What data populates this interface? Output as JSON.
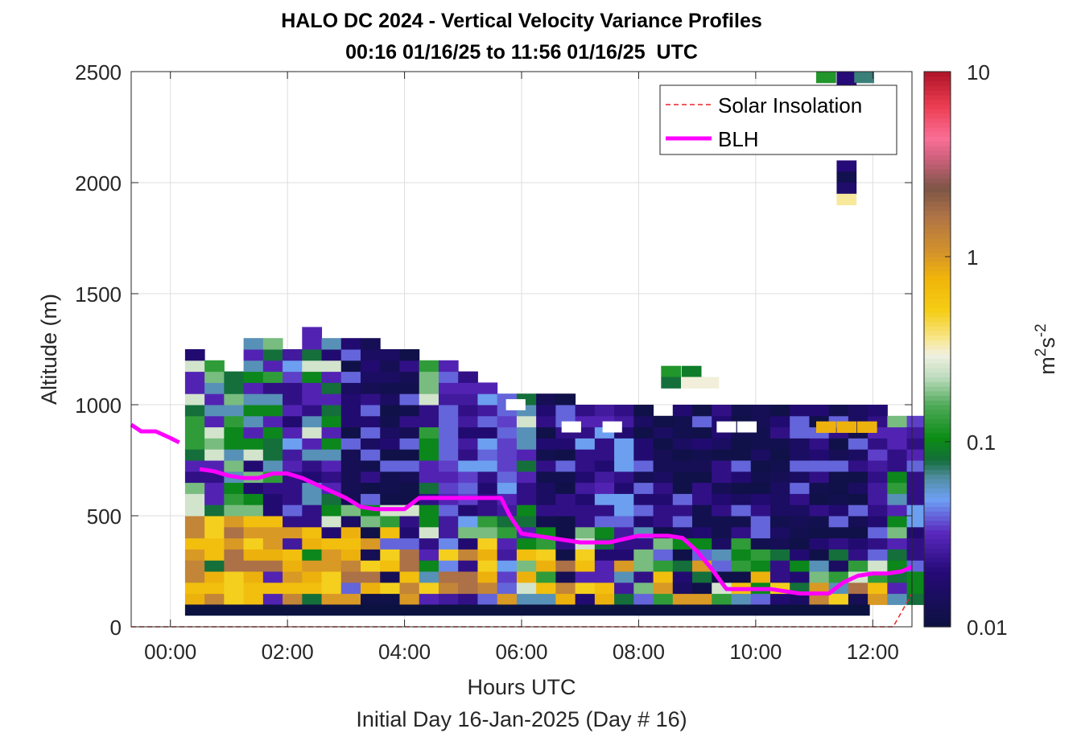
{
  "chart_data": {
    "type": "heatmap",
    "title": "HALO DC 2024 - Vertical Velocity Variance Profiles",
    "subtitle": "00:16 01/16/25 to 11:56 01/16/25  UTC",
    "xlabel": "Hours UTC",
    "xlabel_secondary": "Initial Day 16-Jan-2025 (Day # 16)",
    "ylabel": "Altitude (m)",
    "colorbar_label": "m²s⁻²",
    "colorbar_label_base": "m",
    "colorbar_label_sup1": "2",
    "colorbar_label_mid": "s",
    "colorbar_label_sup2": "-2",
    "xlim": [
      -0.67,
      12.67
    ],
    "ylim": [
      0,
      2500
    ],
    "x_ticks": [
      {
        "v": 0,
        "label": "00:00"
      },
      {
        "v": 2,
        "label": "02:00"
      },
      {
        "v": 4,
        "label": "04:00"
      },
      {
        "v": 6,
        "label": "06:00"
      },
      {
        "v": 8,
        "label": "08:00"
      },
      {
        "v": 10,
        "label": "10:00"
      },
      {
        "v": 12,
        "label": "12:00"
      }
    ],
    "y_ticks": [
      {
        "v": 0,
        "label": "0"
      },
      {
        "v": 500,
        "label": "500"
      },
      {
        "v": 1000,
        "label": "1000"
      },
      {
        "v": 1500,
        "label": "1500"
      },
      {
        "v": 2000,
        "label": "2000"
      },
      {
        "v": 2500,
        "label": "2500"
      }
    ],
    "colorbar": {
      "scale": "log",
      "min": 0.01,
      "max": 10,
      "ticks": [
        {
          "v": 0.01,
          "label": "0.01"
        },
        {
          "v": 0.1,
          "label": "0.1"
        },
        {
          "v": 1,
          "label": "1"
        },
        {
          "v": 10,
          "label": "10"
        }
      ]
    },
    "grid": true,
    "legend": {
      "placement": "top-right",
      "entries": [
        {
          "label": "Solar Insolation",
          "color": "#e8252a",
          "style": "dashed"
        },
        {
          "label": "BLH",
          "color": "#ff00ff",
          "style": "solid"
        }
      ]
    },
    "heatmap": {
      "x_start_hours": 0.25,
      "x_step_hours": 0.3333,
      "y_start_m": 100,
      "y_step_m": 50,
      "bottom_row_value": 0.01,
      "bottom_row_range_hours": [
        0.25,
        11.95
      ],
      "columns": [
        {
          "top": 1200,
          "mode": "w"
        },
        {
          "top": 1150,
          "mode": "w"
        },
        {
          "top": 1100,
          "mode": "w"
        },
        {
          "top": 1250,
          "mode": "w"
        },
        {
          "top": 1250,
          "mode": "g"
        },
        {
          "top": 1200,
          "mode": "v"
        },
        {
          "top": 1300,
          "mode": "g"
        },
        {
          "top": 1250,
          "mode": "g"
        },
        {
          "top": 1250,
          "mode": "n"
        },
        {
          "top": 1250,
          "mode": "n"
        },
        {
          "top": 1200,
          "mode": "n"
        },
        {
          "top": 1200,
          "mode": "n"
        },
        {
          "top": 1150,
          "mode": "g"
        },
        {
          "top": 1150,
          "mode": "b"
        },
        {
          "top": 1100,
          "mode": "v"
        },
        {
          "top": 1050,
          "mode": "v"
        },
        {
          "top": 1000,
          "mode": "b"
        },
        {
          "top": 1000,
          "mode": "g"
        },
        {
          "top": 1000,
          "mode": "n"
        },
        {
          "top": 1000,
          "mode": "n"
        },
        {
          "top": 950,
          "mode": "v"
        },
        {
          "top": 950,
          "mode": "v"
        },
        {
          "top": 950,
          "mode": "v"
        },
        {
          "top": 950,
          "mode": "n"
        },
        {
          "top": 900,
          "mode": "n"
        },
        {
          "top": 950,
          "mode": "n"
        },
        {
          "top": 950,
          "mode": "n"
        },
        {
          "top": 950,
          "mode": "n"
        },
        {
          "top": 950,
          "mode": "n"
        },
        {
          "top": 950,
          "mode": "n"
        },
        {
          "top": 950,
          "mode": "n"
        },
        {
          "top": 950,
          "mode": "n"
        },
        {
          "top": 950,
          "mode": "n"
        },
        {
          "top": 950,
          "mode": "n"
        },
        {
          "top": 950,
          "mode": "n"
        },
        {
          "top": 950,
          "mode": "v"
        },
        {
          "top": 900,
          "mode": "g"
        },
        {
          "top": 900,
          "mode": "v"
        }
      ],
      "extra_cells": [
        {
          "x": 8.55,
          "y": 1150,
          "v": 0.12
        },
        {
          "x": 8.55,
          "y": 1100,
          "v": 0.08
        },
        {
          "x": 8.9,
          "y": 1150,
          "v": 0.09
        },
        {
          "x": 8.9,
          "y": 1100,
          "v": 0.3
        },
        {
          "x": 9.2,
          "y": 1100,
          "v": 0.3
        },
        {
          "x": 11.2,
          "y": 2475,
          "v": 0.12
        },
        {
          "x": 11.55,
          "y": 2475,
          "v": 0.02
        },
        {
          "x": 11.85,
          "y": 2475,
          "v": 0.07
        },
        {
          "x": 11.55,
          "y": 2425,
          "v": 0.02
        },
        {
          "x": 11.55,
          "y": 2075,
          "v": 0.02
        },
        {
          "x": 11.55,
          "y": 2025,
          "v": 0.012
        },
        {
          "x": 11.55,
          "y": 1975,
          "v": 0.017
        },
        {
          "x": 11.55,
          "y": 1925,
          "v": 0.35
        },
        {
          "x": 11.2,
          "y": 900,
          "v": 0.8
        },
        {
          "x": 11.55,
          "y": 900,
          "v": 0.8
        },
        {
          "x": 11.9,
          "y": 900,
          "v": 0.8
        }
      ],
      "blank_cells": [
        {
          "x": 9.5,
          "y": 900
        },
        {
          "x": 9.85,
          "y": 900
        },
        {
          "x": 5.9,
          "y": 1000
        },
        {
          "x": 6.85,
          "y": 900
        },
        {
          "x": 7.55,
          "y": 900
        }
      ]
    },
    "blh": {
      "x": [
        -0.67,
        -0.5,
        -0.25,
        0.0,
        0.15,
        0.5,
        0.75,
        1.0,
        1.25,
        1.5,
        1.75,
        2.0,
        2.25,
        2.5,
        2.75,
        3.0,
        3.25,
        3.5,
        3.75,
        4.0,
        4.25,
        4.5,
        4.75,
        5.0,
        5.25,
        5.5,
        5.65,
        5.8,
        6.0,
        6.5,
        7.0,
        7.5,
        8.0,
        8.25,
        8.5,
        8.75,
        9.0,
        9.25,
        9.5,
        10.0,
        10.25,
        10.5,
        10.75,
        11.0,
        11.25,
        11.5,
        11.75,
        12.0,
        12.25,
        12.5,
        12.67
      ],
      "y": [
        910,
        880,
        880,
        850,
        830,
        710,
        700,
        680,
        670,
        670,
        690,
        690,
        670,
        640,
        610,
        580,
        540,
        530,
        530,
        530,
        580,
        580,
        580,
        580,
        580,
        580,
        580,
        500,
        420,
        400,
        380,
        380,
        410,
        410,
        410,
        400,
        340,
        260,
        170,
        170,
        170,
        160,
        150,
        150,
        150,
        200,
        230,
        240,
        240,
        250,
        270
      ],
      "x_breaks": [
        0.15,
        0.5
      ]
    },
    "solar_insolation": {
      "x": [
        -0.67,
        12.35,
        12.67
      ],
      "y": [
        0,
        0,
        150
      ]
    }
  }
}
